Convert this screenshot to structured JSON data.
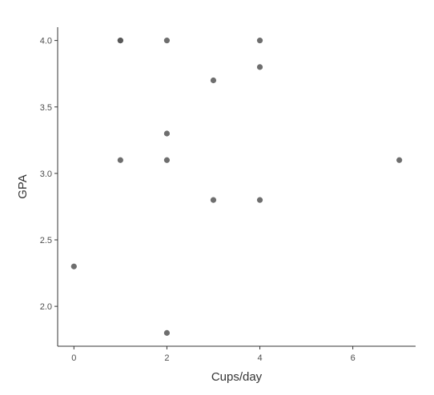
{
  "chart_data": {
    "type": "scatter",
    "xlabel": "Cups/day",
    "ylabel": "GPA",
    "xlim": [
      -0.35,
      7.35
    ],
    "ylim": [
      1.7,
      4.1
    ],
    "x_ticks": [
      0,
      2,
      4,
      6
    ],
    "y_ticks": [
      2.0,
      2.5,
      3.0,
      3.5,
      4.0
    ],
    "x_tick_labels": [
      "0",
      "2",
      "4",
      "6"
    ],
    "y_tick_labels": [
      "2.0",
      "2.5",
      "3.0",
      "3.5",
      "4.0"
    ],
    "grid": false,
    "legend": "none",
    "point_color": "#555555",
    "points": [
      {
        "x": 0,
        "y": 2.3
      },
      {
        "x": 1,
        "y": 4.0
      },
      {
        "x": 1,
        "y": 4.0
      },
      {
        "x": 1,
        "y": 3.1
      },
      {
        "x": 2,
        "y": 4.0
      },
      {
        "x": 2,
        "y": 3.3
      },
      {
        "x": 2,
        "y": 3.1
      },
      {
        "x": 2,
        "y": 1.8
      },
      {
        "x": 3,
        "y": 3.7
      },
      {
        "x": 3,
        "y": 2.8
      },
      {
        "x": 4,
        "y": 4.0
      },
      {
        "x": 4,
        "y": 3.8
      },
      {
        "x": 4,
        "y": 2.8
      },
      {
        "x": 7,
        "y": 3.1
      }
    ]
  }
}
